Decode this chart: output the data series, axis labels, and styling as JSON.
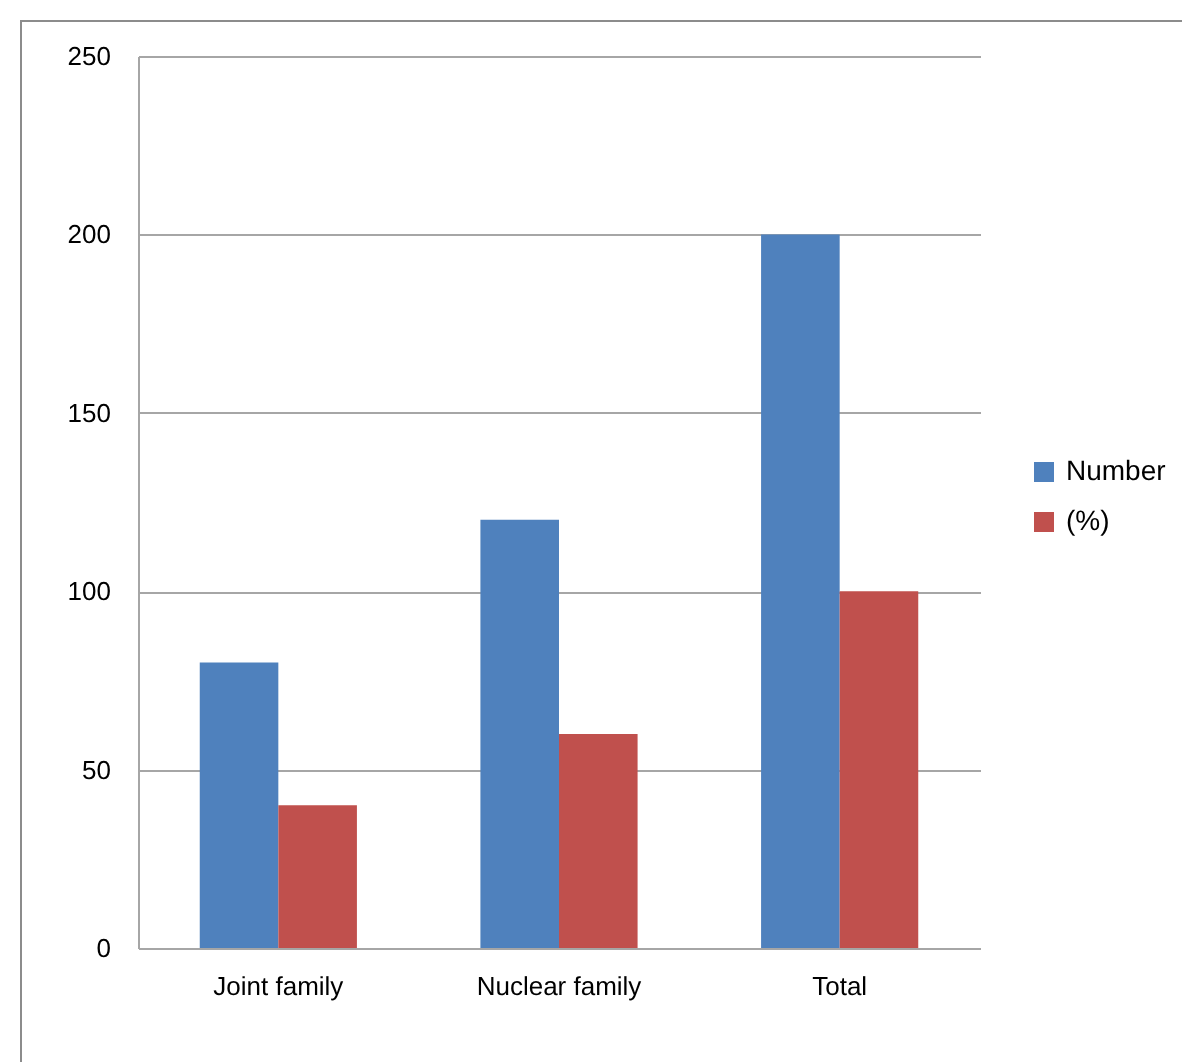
{
  "chart_data": {
    "type": "bar",
    "categories": [
      "Joint family",
      "Nuclear family",
      "Total"
    ],
    "series": [
      {
        "name": "Number",
        "color": "#4f81bd",
        "values": [
          80,
          120,
          200
        ]
      },
      {
        "name": "(%)",
        "color": "#c0504d",
        "values": [
          40,
          60,
          100
        ]
      }
    ],
    "ylim": [
      0,
      250
    ],
    "yticks": [
      0,
      50,
      100,
      150,
      200,
      250
    ],
    "grid": "y",
    "legend": "right"
  }
}
